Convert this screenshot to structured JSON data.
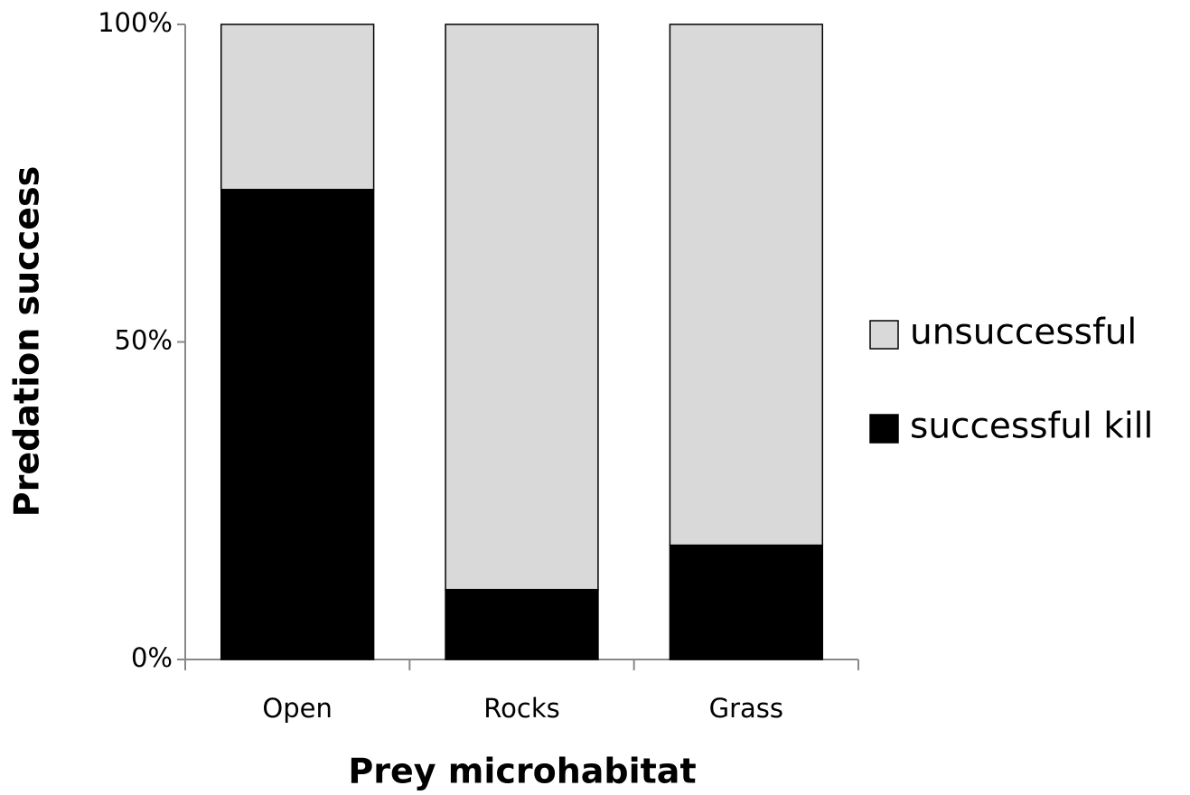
{
  "chart_data": {
    "type": "stacked_bar",
    "x_label": "Prey microhabitat",
    "y_label": "Predation  success",
    "categories": [
      "Open",
      "Rocks",
      "Grass"
    ],
    "series": [
      {
        "name": "successful kill",
        "color": "#000000",
        "values": [
          74,
          11,
          18
        ]
      },
      {
        "name": "unsuccessful",
        "color": "#d9d9d9",
        "values": [
          26,
          89,
          82
        ]
      }
    ],
    "ylim": [
      0,
      100
    ],
    "yticks": [
      {
        "value": 0,
        "label": "0%"
      },
      {
        "value": 50,
        "label": "50%"
      },
      {
        "value": 100,
        "label": "100%"
      }
    ],
    "legend": "right"
  }
}
